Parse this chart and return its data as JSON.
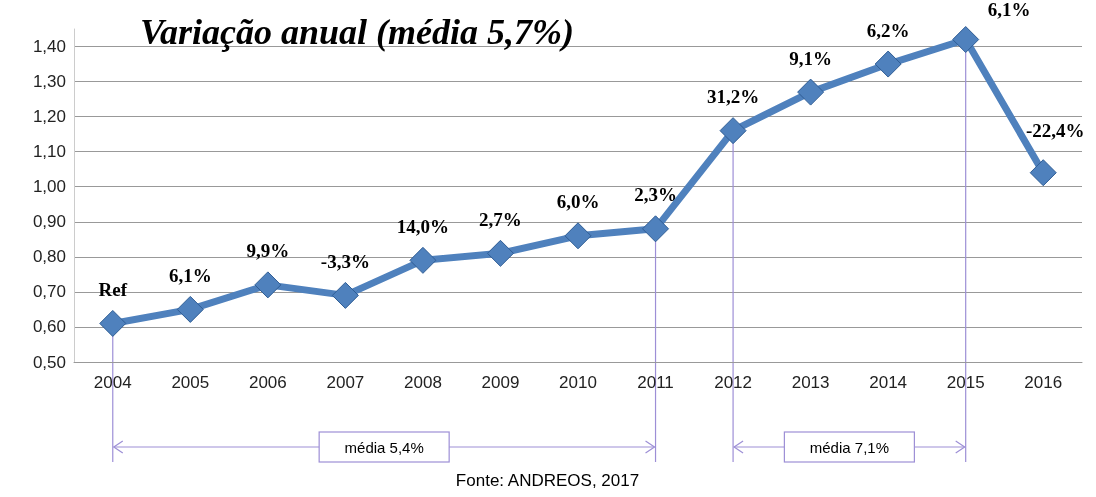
{
  "chart_data": {
    "type": "line",
    "title": "Variação anual (média 5,7%)",
    "categories": [
      "2004",
      "2005",
      "2006",
      "2007",
      "2008",
      "2009",
      "2010",
      "2011",
      "2012",
      "2013",
      "2014",
      "2015",
      "2016"
    ],
    "series": [
      {
        "color": "#4f81bd",
        "values": [
          0.61,
          0.65,
          0.72,
          0.69,
          0.79,
          0.81,
          0.86,
          0.88,
          1.16,
          1.27,
          1.35,
          1.42,
          1.04
        ]
      }
    ],
    "ylim": [
      0.5,
      1.45
    ],
    "yticks": [
      {
        "value": 0.5,
        "label": "0,50"
      },
      {
        "value": 0.6,
        "label": "0,60"
      },
      {
        "value": 0.7,
        "label": "0,70"
      },
      {
        "value": 0.8,
        "label": "0,80"
      },
      {
        "value": 0.9,
        "label": "0,90"
      },
      {
        "value": 1.0,
        "label": "1,00"
      },
      {
        "value": 1.1,
        "label": "1,10"
      },
      {
        "value": 1.2,
        "label": "1,20"
      },
      {
        "value": 1.3,
        "label": "1,30"
      },
      {
        "value": 1.4,
        "label": "1,40"
      }
    ],
    "grid": "y",
    "marker": "diamond",
    "line_style": "solid",
    "ref_lines": [
      {
        "axis": "x",
        "value": "2004",
        "color": "#9d8fd6"
      },
      {
        "axis": "x",
        "value": "2011",
        "color": "#9d8fd6"
      },
      {
        "axis": "x",
        "value": "2012",
        "color": "#9d8fd6"
      },
      {
        "axis": "x",
        "value": "2015",
        "color": "#9d8fd6"
      }
    ],
    "annotations": [
      {
        "text": "Ref",
        "x": "2004",
        "y": 0.61
      },
      {
        "text": "6,1%",
        "x": "2005",
        "y": 0.65
      },
      {
        "text": "9,9%",
        "x": "2006",
        "y": 0.72
      },
      {
        "text": "-3,3%",
        "x": "2007",
        "y": 0.69
      },
      {
        "text": "14,0%",
        "x": "2008",
        "y": 0.79
      },
      {
        "text": "2,7%",
        "x": "2009",
        "y": 0.81
      },
      {
        "text": "6,0%",
        "x": "2010",
        "y": 0.86
      },
      {
        "text": "2,3%",
        "x": "2011",
        "y": 0.88
      },
      {
        "text": "31,2%",
        "x": "2012",
        "y": 1.16
      },
      {
        "text": "9,1%",
        "x": "2013",
        "y": 1.27
      },
      {
        "text": "6,2%",
        "x": "2014",
        "y": 1.35
      },
      {
        "text": "6,1%",
        "x": "2015",
        "y": 1.42
      },
      {
        "text": "-22,4%",
        "x": "2016",
        "y": 1.04
      },
      "média 5,4%",
      "média 7,1%",
      "Fonte: ANDREOS, 2017"
    ]
  }
}
